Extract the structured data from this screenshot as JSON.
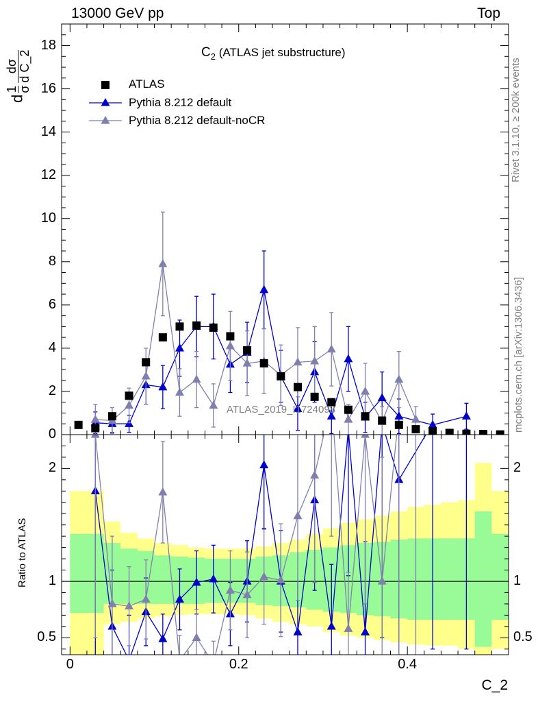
{
  "header": {
    "left": "13000 GeV pp",
    "right": "Top"
  },
  "side_labels": {
    "rivet": "Rivet 3.1.10, ≥ 200k events",
    "mcplots": "mcplots.cern.ch [arXiv:1306.3436]"
  },
  "watermark": "ATLAS_2019_I1724098",
  "colors": {
    "data": "#000000",
    "default": "#0000cc",
    "nocr": "#8080b0",
    "band_yellow": "#ffff8c",
    "band_green": "#98fb98"
  },
  "chart_data": {
    "type": "scatter",
    "title": "C_2 (ATLAS jet substructure)",
    "title_main": "C",
    "title_sub": "2",
    "title_rest": " (ATLAS jet substructure)",
    "ylabel_num1": "1",
    "ylabel_den1": "σ",
    "ylabel_num2": "dσ",
    "ylabel_den2": "d C_2",
    "ylabel_prefix": "d",
    "xlabel": "C_2",
    "ratio_ylabel": "Ratio to ATLAS",
    "xlim": [
      -0.01,
      0.52
    ],
    "ylim": [
      0,
      19
    ],
    "ratio_ylim": [
      0.35,
      2.3
    ],
    "x_ticks": [
      0,
      0.2,
      0.4
    ],
    "x_tick_labels": [
      "0",
      "0.2",
      "0.4"
    ],
    "y_ticks": [
      0,
      2,
      4,
      6,
      8,
      10,
      12,
      14,
      16,
      18
    ],
    "y_tick_labels": [
      "0",
      "2",
      "4",
      "6",
      "8",
      "10",
      "12",
      "14",
      "16",
      "18"
    ],
    "ratio_ticks": [
      0.5,
      1,
      2
    ],
    "ratio_tick_labels": [
      "0.5",
      "1",
      "2"
    ],
    "legend": [
      "ATLAS",
      "Pythia 8.212 default",
      "Pythia 8.212 default-noCR"
    ],
    "bins": [
      0.0,
      0.02,
      0.04,
      0.06,
      0.08,
      0.1,
      0.12,
      0.14,
      0.16,
      0.18,
      0.2,
      0.22,
      0.24,
      0.26,
      0.28,
      0.3,
      0.32,
      0.34,
      0.36,
      0.38,
      0.4,
      0.42,
      0.44,
      0.46,
      0.48,
      0.5,
      0.52
    ],
    "data": {
      "name": "ATLAS",
      "x": [
        0.01,
        0.03,
        0.05,
        0.07,
        0.09,
        0.11,
        0.13,
        0.15,
        0.17,
        0.19,
        0.21,
        0.23,
        0.25,
        0.27,
        0.29,
        0.31,
        0.33,
        0.35,
        0.37,
        0.39,
        0.41,
        0.43,
        0.45,
        0.47,
        0.49,
        0.51
      ],
      "y": [
        0.45,
        0.3,
        0.85,
        1.8,
        3.35,
        4.5,
        5.0,
        5.05,
        4.95,
        4.55,
        3.9,
        3.3,
        2.7,
        2.2,
        1.75,
        1.5,
        1.15,
        0.85,
        0.65,
        0.45,
        0.25,
        0.15,
        0.08,
        0.04,
        0.03,
        0.01
      ]
    },
    "series": [
      {
        "name": "Pythia 8.212 default",
        "x": [
          0.03,
          0.05,
          0.07,
          0.09,
          0.11,
          0.13,
          0.15,
          0.17,
          0.19,
          0.21,
          0.23,
          0.25,
          0.27,
          0.29,
          0.31,
          0.33,
          0.35,
          0.37,
          0.39,
          0.43,
          0.47
        ],
        "y": [
          0.55,
          0.5,
          0.5,
          2.3,
          2.2,
          4.0,
          5.0,
          5.0,
          3.25,
          3.8,
          6.7,
          2.7,
          1.2,
          2.9,
          0.85,
          3.5,
          0.8,
          1.7,
          0.85,
          0.45,
          0.85
        ],
        "err": [
          0.5,
          0.4,
          0.4,
          0.9,
          1.0,
          1.3,
          1.4,
          1.5,
          1.3,
          1.4,
          1.8,
          1.2,
          1.0,
          1.4,
          0.8,
          1.5,
          0.7,
          1.2,
          0.8,
          0.5,
          0.6
        ],
        "ratio": [
          1.8,
          0.6,
          0.3,
          0.73,
          0.49,
          0.84,
          0.99,
          1.02,
          0.71,
          1.0,
          2.03,
          1.0,
          0.55,
          1.72,
          0.6,
          2.35,
          0.55,
          2.4,
          1.9,
          2.4,
          2.4
        ],
        "ratio_err": [
          1.6,
          0.5,
          0.4,
          0.3,
          0.22,
          0.27,
          0.28,
          0.3,
          0.28,
          0.36,
          0.56,
          0.45,
          0.45,
          0.8,
          0.55,
          1.3,
          0.8,
          1.9,
          1.8,
          2.0,
          2.0
        ]
      },
      {
        "name": "Pythia 8.212 default-noCR",
        "x": [
          0.03,
          0.05,
          0.07,
          0.09,
          0.11,
          0.13,
          0.15,
          0.17,
          0.19,
          0.21,
          0.23,
          0.25,
          0.27,
          0.29,
          0.31,
          0.33,
          0.35,
          0.37,
          0.39,
          0.41
        ],
        "y": [
          0.7,
          0.65,
          1.35,
          2.7,
          7.9,
          1.95,
          2.55,
          1.35,
          4.1,
          3.3,
          3.4,
          2.75,
          3.35,
          3.4,
          3.95,
          0.7,
          2.0,
          0.6,
          2.55,
          0.7
        ],
        "err": [
          0.7,
          0.6,
          0.8,
          1.3,
          2.4,
          1.1,
          1.3,
          1.0,
          1.6,
          1.5,
          1.5,
          1.4,
          1.6,
          1.6,
          1.7,
          0.7,
          1.3,
          0.7,
          1.3,
          0.6
        ],
        "ratio": [
          2.3,
          0.8,
          0.78,
          0.84,
          1.79,
          0.3,
          0.5,
          0.27,
          0.92,
          0.88,
          1.04,
          1.01,
          1.58,
          1.94,
          2.6,
          0.58,
          2.3,
          1.0,
          2.5,
          2.5
        ],
        "ratio_err": [
          1.8,
          0.6,
          0.35,
          0.35,
          0.45,
          0.22,
          0.25,
          0.2,
          0.35,
          0.38,
          0.42,
          0.5,
          0.75,
          0.95,
          1.2,
          0.5,
          1.5,
          1.1,
          2.5,
          2.5
        ]
      }
    ],
    "band_green": {
      "lo": [
        0.72,
        0.72,
        0.8,
        0.8,
        0.8,
        0.8,
        0.8,
        0.8,
        0.81,
        0.81,
        0.81,
        0.79,
        0.78,
        0.77,
        0.75,
        0.73,
        0.72,
        0.7,
        0.69,
        0.67,
        0.66,
        0.66,
        0.66,
        0.66,
        0.42,
        0.66
      ],
      "hi": [
        1.42,
        1.42,
        1.34,
        1.29,
        1.27,
        1.23,
        1.22,
        1.21,
        1.2,
        1.2,
        1.2,
        1.22,
        1.23,
        1.26,
        1.28,
        1.3,
        1.32,
        1.34,
        1.35,
        1.37,
        1.38,
        1.38,
        1.38,
        1.38,
        1.62,
        1.42
      ]
    },
    "band_yellow": {
      "lo": [
        0.35,
        0.35,
        0.62,
        0.64,
        0.67,
        0.69,
        0.7,
        0.71,
        0.71,
        0.71,
        0.7,
        0.67,
        0.64,
        0.62,
        0.6,
        0.55,
        0.52,
        0.5,
        0.48,
        0.46,
        0.44,
        0.43,
        0.43,
        0.4,
        0.35,
        0.4
      ],
      "hi": [
        1.8,
        1.8,
        1.53,
        1.43,
        1.38,
        1.34,
        1.32,
        1.3,
        1.29,
        1.29,
        1.29,
        1.31,
        1.34,
        1.37,
        1.42,
        1.47,
        1.52,
        1.55,
        1.58,
        1.62,
        1.66,
        1.68,
        1.7,
        1.72,
        2.05,
        1.8
      ]
    }
  }
}
